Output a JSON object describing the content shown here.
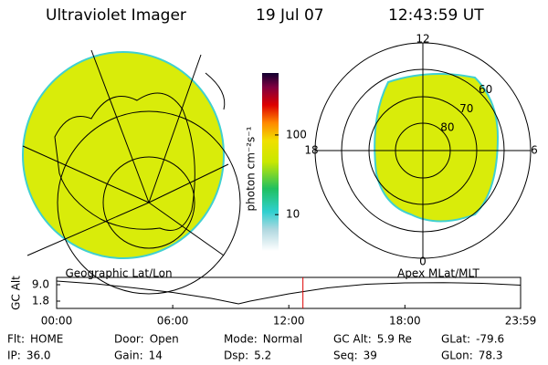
{
  "header": {
    "title": "Ultraviolet Imager",
    "date": "19 Jul 07",
    "time": "12:43:59 UT"
  },
  "geo_panel": {
    "label": "Geographic Lat/Lon"
  },
  "colorbar": {
    "label": "photon cm⁻²s⁻¹",
    "scale": "log",
    "lim": [
      3.5,
      600
    ],
    "ticks": [
      10,
      100
    ]
  },
  "polar_panel": {
    "label": "Apex MLat/MLT",
    "mlt_labels": [
      12,
      18,
      6,
      0
    ],
    "mlat_labels": [
      60,
      70,
      80
    ]
  },
  "chart_data": {
    "type": "line",
    "ylabel": "GC Alt",
    "x": [
      0,
      2,
      4,
      6,
      8,
      9.4,
      10,
      12,
      14,
      16,
      18,
      20,
      22,
      23.98
    ],
    "values": [
      10.6,
      9.4,
      7.6,
      5.6,
      3,
      0.6,
      1.8,
      5,
      7.6,
      9.2,
      9.8,
      9.9,
      9.6,
      8.8
    ],
    "color": "#000000",
    "xlim": [
      0,
      23.98
    ],
    "ylim": [
      -1.4,
      12.2
    ],
    "xticks": [
      {
        "value": 0,
        "label": "00:00"
      },
      {
        "value": 6,
        "label": "06:00"
      },
      {
        "value": 12,
        "label": "12:00"
      },
      {
        "value": 18,
        "label": "18:00"
      },
      {
        "value": 23.98,
        "label": "23:59"
      }
    ],
    "yticks": [
      {
        "value": 9,
        "label": "9.0"
      },
      1.8
    ],
    "marker_x": 12.73,
    "marker_color": "#dd0000"
  },
  "footer": {
    "rows": [
      [
        {
          "label": "Flt:",
          "value": "HOME"
        },
        {
          "label": "Door:",
          "value": "Open"
        },
        {
          "label": "Mode:",
          "value": "Normal"
        },
        {
          "label": "GC Alt:",
          "value": "5.9 Re"
        },
        {
          "label": "GLat:",
          "value": "-79.6"
        }
      ],
      [
        {
          "label": "IP:",
          "value": "36.0"
        },
        {
          "label": "Gain:",
          "value": "14"
        },
        {
          "label": "Dsp:",
          "value": "5.2"
        },
        {
          "label": "Seq:",
          "value": "39"
        },
        {
          "label": "GLon:",
          "value": "78.3"
        }
      ]
    ]
  }
}
